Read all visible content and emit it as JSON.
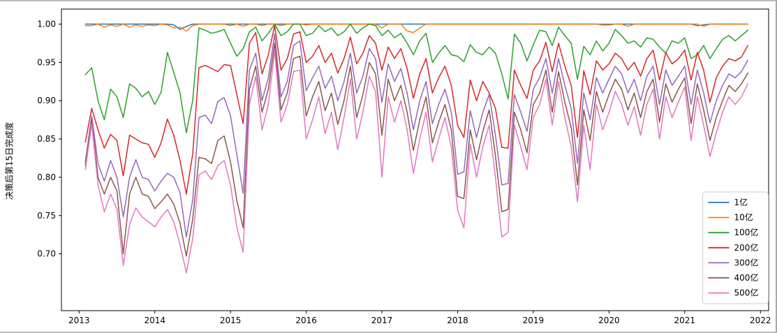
{
  "figure": {
    "background": "#ffffff",
    "frame_color": "#000000"
  },
  "chart_data": {
    "type": "line",
    "title": "",
    "xlabel": "",
    "ylabel": "决策后第15日完成度",
    "x_freq": "monthly",
    "x_start": "2013-02",
    "x_end": "2021-11",
    "x_points": 106,
    "x_tick_labels": [
      "2013",
      "2014",
      "2015",
      "2016",
      "2017",
      "2018",
      "2019",
      "2020",
      "2021",
      "2022"
    ],
    "y_ticks": [
      0.7,
      0.75,
      0.8,
      0.85,
      0.9,
      0.95,
      1.0
    ],
    "y_tick_labels": [
      "0.70",
      "0.75",
      "0.80",
      "0.85",
      "0.90",
      "0.95",
      "1.00"
    ],
    "ylim": [
      0.6258,
      1.0196
    ],
    "xlim_months": [
      -2.8,
      109.3
    ],
    "x_start_month_offset": 1,
    "grid": false,
    "legend_position": "lower right",
    "series": [
      {
        "name": "1亿",
        "color": "#1f77b4",
        "values": [
          1,
          1,
          1,
          1,
          1,
          1,
          1,
          1,
          1,
          1,
          1,
          1,
          1,
          1,
          0.999,
          0.993,
          0.997,
          1,
          1,
          1,
          1,
          1,
          1,
          1,
          1,
          1,
          1,
          1,
          1,
          1,
          1,
          1,
          1,
          1,
          1,
          1,
          1,
          1,
          1,
          1,
          1,
          1,
          1,
          1,
          1,
          1,
          1,
          1,
          1,
          1,
          1,
          1,
          1,
          1,
          1,
          1,
          1,
          1,
          1,
          1,
          1,
          1,
          1,
          1,
          1,
          1,
          1,
          1,
          1,
          1,
          1,
          1,
          1,
          1,
          1,
          1,
          1,
          1,
          1,
          1,
          1,
          1,
          0.999,
          0.999,
          1,
          1,
          1,
          1,
          1,
          1,
          1,
          1,
          1,
          1,
          1,
          1,
          1,
          0.998,
          0.999,
          1,
          1,
          1,
          1,
          1,
          1,
          1
        ]
      },
      {
        "name": "10亿",
        "color": "#ff7f0e",
        "values": [
          0.998,
          0.998,
          1,
          0.996,
          0.999,
          0.997,
          1,
          0.996,
          0.999,
          0.997,
          0.999,
          0.998,
          1,
          0.999,
          0.995,
          0.996,
          0.991,
          0.998,
          1,
          1,
          1,
          1,
          1,
          0.998,
          1,
          0.997,
          1,
          1,
          0.998,
          1,
          1,
          0.998,
          1,
          1,
          1,
          0.999,
          1,
          1,
          1,
          1,
          1,
          1,
          1,
          1,
          1,
          1,
          1,
          0.995,
          1,
          1,
          1,
          0.991,
          0.989,
          0.995,
          1,
          1,
          1,
          1,
          1,
          1,
          1,
          1,
          1,
          1,
          1,
          1,
          1,
          1,
          1,
          1,
          1,
          1,
          1,
          1,
          1,
          1,
          1,
          1,
          1,
          1,
          1,
          1,
          1,
          1,
          1,
          1,
          0.997,
          1,
          1,
          1,
          1,
          1,
          1,
          1,
          1,
          1,
          1,
          1,
          0.997,
          1,
          1,
          1,
          1,
          1,
          1,
          1
        ]
      },
      {
        "name": "100亿",
        "color": "#2ca02c",
        "values": [
          0.934,
          0.943,
          0.9,
          0.875,
          0.915,
          0.905,
          0.878,
          0.922,
          0.916,
          0.905,
          0.912,
          0.895,
          0.911,
          0.963,
          0.937,
          0.91,
          0.858,
          0.9,
          0.995,
          0.992,
          0.988,
          0.99,
          0.993,
          0.975,
          0.958,
          0.968,
          0.99,
          0.996,
          0.978,
          0.988,
          1.0,
          0.985,
          0.99,
          1.0,
          1.0,
          0.985,
          0.988,
          0.998,
          0.99,
          0.995,
          0.985,
          0.99,
          1.0,
          0.988,
          0.995,
          1.0,
          0.998,
          0.985,
          0.992,
          0.982,
          0.988,
          0.975,
          0.96,
          0.978,
          0.988,
          0.95,
          0.962,
          0.972,
          0.96,
          0.958,
          0.951,
          0.973,
          0.963,
          0.96,
          0.97,
          0.962,
          0.935,
          0.902,
          0.987,
          0.975,
          0.952,
          0.973,
          0.992,
          0.99,
          0.972,
          0.996,
          0.985,
          0.975,
          0.928,
          0.971,
          0.96,
          0.978,
          0.965,
          0.975,
          0.993,
          0.985,
          0.975,
          0.978,
          0.97,
          0.982,
          0.98,
          0.97,
          0.962,
          0.978,
          0.975,
          0.982,
          0.955,
          0.96,
          0.972,
          0.955,
          0.968,
          0.98,
          0.985,
          0.978,
          0.985,
          0.992
        ]
      },
      {
        "name": "200亿",
        "color": "#d62728",
        "values": [
          0.846,
          0.89,
          0.862,
          0.838,
          0.856,
          0.848,
          0.802,
          0.855,
          0.85,
          0.845,
          0.843,
          0.826,
          0.845,
          0.876,
          0.855,
          0.822,
          0.778,
          0.83,
          0.943,
          0.946,
          0.942,
          0.938,
          0.947,
          0.946,
          0.908,
          0.87,
          0.975,
          0.989,
          0.935,
          0.96,
          0.998,
          0.94,
          0.955,
          0.987,
          0.99,
          0.95,
          0.958,
          0.972,
          0.95,
          0.962,
          0.936,
          0.955,
          0.983,
          0.948,
          0.962,
          0.985,
          0.975,
          0.94,
          0.97,
          0.955,
          0.968,
          0.942,
          0.903,
          0.935,
          0.955,
          0.91,
          0.93,
          0.945,
          0.92,
          0.868,
          0.852,
          0.927,
          0.9,
          0.925,
          0.91,
          0.89,
          0.839,
          0.838,
          0.94,
          0.92,
          0.903,
          0.94,
          0.952,
          0.976,
          0.938,
          0.975,
          0.945,
          0.92,
          0.852,
          0.939,
          0.908,
          0.952,
          0.94,
          0.948,
          0.962,
          0.955,
          0.94,
          0.95,
          0.932,
          0.955,
          0.966,
          0.927,
          0.963,
          0.948,
          0.955,
          0.966,
          0.927,
          0.963,
          0.94,
          0.898,
          0.93,
          0.945,
          0.955,
          0.952,
          0.957,
          0.972
        ]
      },
      {
        "name": "300亿",
        "color": "#9467bd",
        "values": [
          0.82,
          0.88,
          0.818,
          0.795,
          0.822,
          0.8,
          0.748,
          0.8,
          0.823,
          0.8,
          0.797,
          0.782,
          0.795,
          0.805,
          0.8,
          0.78,
          0.722,
          0.77,
          0.878,
          0.881,
          0.87,
          0.899,
          0.904,
          0.88,
          0.83,
          0.779,
          0.94,
          0.962,
          0.9,
          0.93,
          0.987,
          0.905,
          0.925,
          0.972,
          0.978,
          0.913,
          0.93,
          0.945,
          0.916,
          0.932,
          0.9,
          0.925,
          0.962,
          0.91,
          0.932,
          0.968,
          0.955,
          0.898,
          0.948,
          0.925,
          0.942,
          0.91,
          0.862,
          0.9,
          0.925,
          0.87,
          0.895,
          0.915,
          0.885,
          0.804,
          0.807,
          0.887,
          0.852,
          0.885,
          0.908,
          0.855,
          0.79,
          0.792,
          0.908,
          0.885,
          0.86,
          0.915,
          0.93,
          0.955,
          0.91,
          0.955,
          0.92,
          0.89,
          0.818,
          0.91,
          0.875,
          0.93,
          0.91,
          0.928,
          0.945,
          0.935,
          0.91,
          0.928,
          0.9,
          0.932,
          0.945,
          0.895,
          0.94,
          0.92,
          0.932,
          0.945,
          0.895,
          0.94,
          0.91,
          0.871,
          0.9,
          0.92,
          0.935,
          0.93,
          0.938,
          0.953
        ]
      },
      {
        "name": "400亿",
        "color": "#8c564b",
        "values": [
          0.815,
          0.875,
          0.8,
          0.778,
          0.8,
          0.782,
          0.7,
          0.778,
          0.8,
          0.778,
          0.775,
          0.759,
          0.768,
          0.778,
          0.765,
          0.74,
          0.697,
          0.745,
          0.826,
          0.824,
          0.818,
          0.848,
          0.854,
          0.82,
          0.77,
          0.734,
          0.915,
          0.945,
          0.885,
          0.915,
          0.975,
          0.888,
          0.91,
          0.955,
          0.958,
          0.88,
          0.905,
          0.925,
          0.887,
          0.91,
          0.869,
          0.9,
          0.945,
          0.878,
          0.908,
          0.95,
          0.935,
          0.855,
          0.928,
          0.9,
          0.92,
          0.885,
          0.835,
          0.875,
          0.905,
          0.845,
          0.872,
          0.895,
          0.862,
          0.775,
          0.772,
          0.862,
          0.823,
          0.86,
          0.888,
          0.828,
          0.755,
          0.758,
          0.885,
          0.862,
          0.832,
          0.895,
          0.91,
          0.94,
          0.885,
          0.938,
          0.898,
          0.865,
          0.79,
          0.888,
          0.848,
          0.912,
          0.885,
          0.908,
          0.928,
          0.915,
          0.888,
          0.91,
          0.878,
          0.912,
          0.928,
          0.872,
          0.922,
          0.898,
          0.915,
          0.93,
          0.87,
          0.922,
          0.888,
          0.848,
          0.878,
          0.9,
          0.92,
          0.912,
          0.922,
          0.936
        ]
      },
      {
        "name": "500亿",
        "color": "#e377c2",
        "values": [
          0.81,
          0.87,
          0.79,
          0.755,
          0.778,
          0.758,
          0.685,
          0.738,
          0.76,
          0.748,
          0.742,
          0.735,
          0.748,
          0.758,
          0.742,
          0.712,
          0.675,
          0.72,
          0.803,
          0.808,
          0.797,
          0.815,
          0.822,
          0.79,
          0.735,
          0.702,
          0.895,
          0.932,
          0.862,
          0.895,
          0.965,
          0.872,
          0.895,
          0.938,
          0.94,
          0.85,
          0.875,
          0.905,
          0.857,
          0.885,
          0.836,
          0.878,
          0.928,
          0.85,
          0.885,
          0.932,
          0.912,
          0.8,
          0.905,
          0.872,
          0.9,
          0.862,
          0.805,
          0.85,
          0.885,
          0.82,
          0.85,
          0.878,
          0.84,
          0.757,
          0.734,
          0.843,
          0.8,
          0.84,
          0.868,
          0.8,
          0.722,
          0.728,
          0.868,
          0.84,
          0.81,
          0.878,
          0.895,
          0.928,
          0.868,
          0.925,
          0.878,
          0.84,
          0.768,
          0.868,
          0.81,
          0.895,
          0.862,
          0.885,
          0.912,
          0.895,
          0.868,
          0.892,
          0.855,
          0.895,
          0.915,
          0.85,
          0.905,
          0.878,
          0.898,
          0.918,
          0.848,
          0.905,
          0.868,
          0.827,
          0.858,
          0.885,
          0.905,
          0.895,
          0.905,
          0.922
        ]
      }
    ]
  }
}
